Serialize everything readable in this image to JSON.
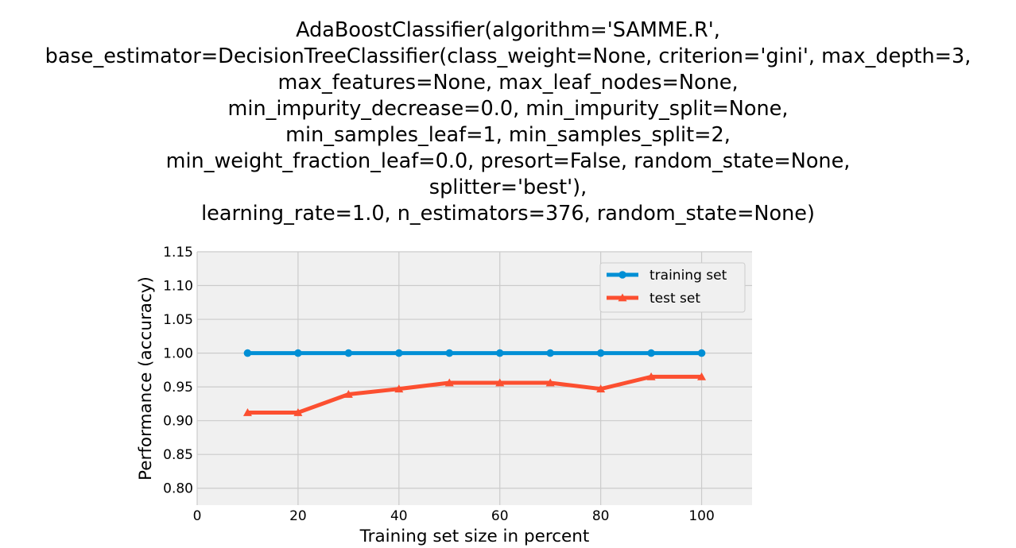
{
  "chart_data": {
    "type": "line",
    "title_lines": [
      "AdaBoostClassifier(algorithm='SAMME.R',",
      "base_estimator=DecisionTreeClassifier(class_weight=None, criterion='gini', max_depth=3,",
      "max_features=None, max_leaf_nodes=None,",
      "min_impurity_decrease=0.0, min_impurity_split=None,",
      "min_samples_leaf=1, min_samples_split=2,",
      "min_weight_fraction_leaf=0.0, presort=False, random_state=None,",
      "splitter='best'),",
      "learning_rate=1.0, n_estimators=376, random_state=None)"
    ],
    "xlabel": "Training set size in percent",
    "ylabel": "Performance (accuracy)",
    "xlim": [
      0,
      110
    ],
    "ylim": [
      0.775,
      1.15
    ],
    "xticks": [
      0,
      20,
      40,
      60,
      80,
      100
    ],
    "xtick_labels": [
      "0",
      "20",
      "40",
      "60",
      "80",
      "100"
    ],
    "yticks": [
      0.8,
      0.85,
      0.9,
      0.95,
      1.0,
      1.05,
      1.1,
      1.15
    ],
    "ytick_labels": [
      "0.80",
      "0.85",
      "0.90",
      "0.95",
      "1.00",
      "1.05",
      "1.10",
      "1.15"
    ],
    "grid": true,
    "legend_position": "top-right",
    "x": [
      10,
      20,
      30,
      40,
      50,
      60,
      70,
      80,
      90,
      100
    ],
    "series": [
      {
        "name": "training set",
        "marker": "circle",
        "color": "#008fd5",
        "values": [
          1.0,
          1.0,
          1.0,
          1.0,
          1.0,
          1.0,
          1.0,
          1.0,
          1.0,
          1.0
        ]
      },
      {
        "name": "test set",
        "marker": "triangle",
        "color": "#fc4f30",
        "values": [
          0.912,
          0.912,
          0.939,
          0.947,
          0.956,
          0.956,
          0.956,
          0.947,
          0.965,
          0.965
        ]
      }
    ],
    "plot_background": "#f0f0f0",
    "grid_color": "#cbcbcb"
  }
}
